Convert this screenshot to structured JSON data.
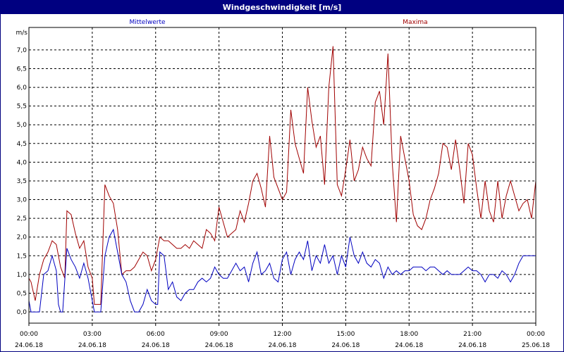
{
  "window": {
    "title": "Windgeschwindigkeit [m/s]"
  },
  "colors": {
    "series_mean": "#0000c0",
    "series_max": "#a00000",
    "title_bar": "#000080"
  },
  "chart_data": {
    "type": "line",
    "title": "Windgeschwindigkeit [m/s]",
    "ylabel": "m/s",
    "ylim": [
      -0.3,
      7.6
    ],
    "xlim": [
      "24.06.18 00:00",
      "25.06.18 00:00"
    ],
    "grid": true,
    "legend": "top",
    "y_ticks": [
      "0,0",
      "0,5",
      "1,0",
      "1,5",
      "2,0",
      "2,5",
      "3,0",
      "3,5",
      "4,0",
      "4,5",
      "5,0",
      "5,5",
      "6,0",
      "6,5",
      "7,0"
    ],
    "x_ticks": [
      {
        "time": "00:00",
        "date": "24.06.18"
      },
      {
        "time": "03:00",
        "date": "24.06.18"
      },
      {
        "time": "06:00",
        "date": "24.06.18"
      },
      {
        "time": "09:00",
        "date": "24.06.18"
      },
      {
        "time": "12:00",
        "date": "24.06.18"
      },
      {
        "time": "15:00",
        "date": "24.06.18"
      },
      {
        "time": "18:00",
        "date": "24.06.18"
      },
      {
        "time": "21:00",
        "date": "24.06.18"
      },
      {
        "time": "00:00",
        "date": "25.06.18"
      }
    ],
    "series": [
      {
        "name": "Mittelwerte",
        "points": [
          [
            0,
            0.3
          ],
          [
            0.1,
            0
          ],
          [
            0.5,
            0
          ],
          [
            0.7,
            1
          ],
          [
            0.9,
            1.1
          ],
          [
            1.1,
            1.5
          ],
          [
            1.3,
            1.1
          ],
          [
            1.4,
            0.2
          ],
          [
            1.5,
            0
          ],
          [
            1.6,
            0
          ],
          [
            1.8,
            1.7
          ],
          [
            2.0,
            1.4
          ],
          [
            2.2,
            1.2
          ],
          [
            2.4,
            0.9
          ],
          [
            2.6,
            1.3
          ],
          [
            2.8,
            0.9
          ],
          [
            3.0,
            0.3
          ],
          [
            3.1,
            0
          ],
          [
            3.4,
            0
          ],
          [
            3.6,
            1.5
          ],
          [
            3.8,
            2.0
          ],
          [
            4.0,
            2.2
          ],
          [
            4.2,
            1.6
          ],
          [
            4.4,
            1.0
          ],
          [
            4.6,
            0.8
          ],
          [
            4.8,
            0.3
          ],
          [
            5.0,
            0
          ],
          [
            5.2,
            0
          ],
          [
            5.4,
            0.2
          ],
          [
            5.6,
            0.6
          ],
          [
            5.8,
            0.3
          ],
          [
            6.0,
            0.2
          ],
          [
            6.1,
            0.2
          ],
          [
            6.2,
            1.6
          ],
          [
            6.4,
            1.5
          ],
          [
            6.6,
            0.6
          ],
          [
            6.8,
            0.8
          ],
          [
            7.0,
            0.4
          ],
          [
            7.2,
            0.3
          ],
          [
            7.4,
            0.5
          ],
          [
            7.6,
            0.6
          ],
          [
            7.8,
            0.6
          ],
          [
            8.0,
            0.8
          ],
          [
            8.2,
            0.9
          ],
          [
            8.4,
            0.8
          ],
          [
            8.6,
            0.9
          ],
          [
            8.8,
            1.2
          ],
          [
            9.0,
            1.0
          ],
          [
            9.2,
            0.9
          ],
          [
            9.4,
            0.9
          ],
          [
            9.6,
            1.1
          ],
          [
            9.8,
            1.3
          ],
          [
            10.0,
            1.1
          ],
          [
            10.2,
            1.2
          ],
          [
            10.4,
            0.8
          ],
          [
            10.6,
            1.3
          ],
          [
            10.8,
            1.6
          ],
          [
            11.0,
            1.0
          ],
          [
            11.2,
            1.1
          ],
          [
            11.4,
            1.3
          ],
          [
            11.6,
            0.9
          ],
          [
            11.8,
            0.8
          ],
          [
            12.0,
            1.4
          ],
          [
            12.2,
            1.6
          ],
          [
            12.4,
            1.0
          ],
          [
            12.6,
            1.4
          ],
          [
            12.8,
            1.6
          ],
          [
            13.0,
            1.4
          ],
          [
            13.2,
            1.9
          ],
          [
            13.4,
            1.1
          ],
          [
            13.6,
            1.5
          ],
          [
            13.8,
            1.3
          ],
          [
            14.0,
            1.8
          ],
          [
            14.2,
            1.3
          ],
          [
            14.4,
            1.5
          ],
          [
            14.6,
            1.0
          ],
          [
            14.8,
            1.5
          ],
          [
            15.0,
            1.2
          ],
          [
            15.2,
            2.0
          ],
          [
            15.4,
            1.5
          ],
          [
            15.6,
            1.3
          ],
          [
            15.8,
            1.6
          ],
          [
            16.0,
            1.3
          ],
          [
            16.2,
            1.2
          ],
          [
            16.4,
            1.4
          ],
          [
            16.6,
            1.3
          ],
          [
            16.8,
            0.9
          ],
          [
            17.0,
            1.2
          ],
          [
            17.2,
            1.0
          ],
          [
            17.4,
            1.1
          ],
          [
            17.6,
            1.0
          ],
          [
            17.8,
            1.1
          ],
          [
            18.0,
            1.1
          ],
          [
            18.2,
            1.2
          ],
          [
            18.4,
            1.2
          ],
          [
            18.6,
            1.2
          ],
          [
            18.8,
            1.1
          ],
          [
            19.0,
            1.2
          ],
          [
            19.2,
            1.2
          ],
          [
            19.4,
            1.1
          ],
          [
            19.6,
            1.0
          ],
          [
            19.8,
            1.1
          ],
          [
            20.0,
            1.0
          ],
          [
            20.2,
            1.0
          ],
          [
            20.4,
            1.0
          ],
          [
            20.6,
            1.1
          ],
          [
            20.8,
            1.2
          ],
          [
            21.0,
            1.1
          ],
          [
            21.2,
            1.1
          ],
          [
            21.4,
            1.0
          ],
          [
            21.6,
            0.8
          ],
          [
            21.8,
            1.0
          ],
          [
            22.0,
            1.0
          ],
          [
            22.2,
            0.9
          ],
          [
            22.4,
            1.1
          ],
          [
            22.6,
            1.0
          ],
          [
            22.8,
            0.8
          ],
          [
            23.0,
            1.0
          ],
          [
            23.2,
            1.3
          ],
          [
            23.4,
            1.5
          ],
          [
            23.6,
            1.5
          ],
          [
            24.0,
            1.5
          ]
        ]
      },
      {
        "name": "Maxima",
        "points": [
          [
            0,
            0.9
          ],
          [
            0.1,
            0.8
          ],
          [
            0.3,
            0.3
          ],
          [
            0.5,
            1.0
          ],
          [
            0.7,
            1.4
          ],
          [
            0.9,
            1.6
          ],
          [
            1.1,
            1.9
          ],
          [
            1.3,
            1.8
          ],
          [
            1.5,
            1.2
          ],
          [
            1.7,
            0.9
          ],
          [
            1.8,
            2.7
          ],
          [
            2.0,
            2.6
          ],
          [
            2.2,
            2.1
          ],
          [
            2.4,
            1.7
          ],
          [
            2.6,
            1.9
          ],
          [
            2.8,
            1.2
          ],
          [
            3.0,
            0.9
          ],
          [
            3.1,
            0.2
          ],
          [
            3.4,
            0.2
          ],
          [
            3.6,
            3.4
          ],
          [
            3.8,
            3.1
          ],
          [
            4.0,
            2.9
          ],
          [
            4.2,
            2.2
          ],
          [
            4.4,
            1.0
          ],
          [
            4.6,
            1.1
          ],
          [
            4.8,
            1.1
          ],
          [
            5.0,
            1.2
          ],
          [
            5.2,
            1.4
          ],
          [
            5.4,
            1.6
          ],
          [
            5.6,
            1.5
          ],
          [
            5.8,
            1.1
          ],
          [
            6.0,
            1.4
          ],
          [
            6.2,
            2.0
          ],
          [
            6.4,
            1.9
          ],
          [
            6.6,
            1.9
          ],
          [
            6.8,
            1.8
          ],
          [
            7.0,
            1.7
          ],
          [
            7.2,
            1.7
          ],
          [
            7.4,
            1.8
          ],
          [
            7.6,
            1.7
          ],
          [
            7.8,
            1.9
          ],
          [
            8.0,
            1.8
          ],
          [
            8.2,
            1.7
          ],
          [
            8.4,
            2.2
          ],
          [
            8.6,
            2.1
          ],
          [
            8.8,
            1.9
          ],
          [
            9.0,
            2.8
          ],
          [
            9.2,
            2.4
          ],
          [
            9.4,
            2.0
          ],
          [
            9.6,
            2.1
          ],
          [
            9.8,
            2.2
          ],
          [
            10.0,
            2.7
          ],
          [
            10.2,
            2.4
          ],
          [
            10.4,
            2.9
          ],
          [
            10.6,
            3.5
          ],
          [
            10.8,
            3.7
          ],
          [
            11.0,
            3.3
          ],
          [
            11.2,
            2.8
          ],
          [
            11.4,
            4.7
          ],
          [
            11.6,
            3.6
          ],
          [
            11.8,
            3.3
          ],
          [
            12.0,
            3.0
          ],
          [
            12.2,
            3.2
          ],
          [
            12.4,
            5.4
          ],
          [
            12.6,
            4.5
          ],
          [
            12.8,
            4.1
          ],
          [
            13.0,
            3.7
          ],
          [
            13.2,
            6.0
          ],
          [
            13.4,
            5.1
          ],
          [
            13.6,
            4.4
          ],
          [
            13.8,
            4.7
          ],
          [
            14.0,
            3.4
          ],
          [
            14.2,
            6.0
          ],
          [
            14.4,
            7.1
          ],
          [
            14.6,
            3.4
          ],
          [
            14.8,
            3.1
          ],
          [
            15.0,
            3.8
          ],
          [
            15.2,
            4.6
          ],
          [
            15.4,
            3.5
          ],
          [
            15.6,
            3.8
          ],
          [
            15.8,
            4.4
          ],
          [
            16.0,
            4.1
          ],
          [
            16.2,
            3.9
          ],
          [
            16.4,
            5.6
          ],
          [
            16.6,
            5.9
          ],
          [
            16.8,
            5.0
          ],
          [
            17.0,
            6.9
          ],
          [
            17.2,
            4.0
          ],
          [
            17.4,
            2.4
          ],
          [
            17.6,
            4.7
          ],
          [
            17.8,
            4.1
          ],
          [
            18.0,
            3.5
          ],
          [
            18.2,
            2.6
          ],
          [
            18.4,
            2.3
          ],
          [
            18.6,
            2.2
          ],
          [
            18.8,
            2.5
          ],
          [
            19.0,
            3.0
          ],
          [
            19.2,
            3.3
          ],
          [
            19.4,
            3.7
          ],
          [
            19.6,
            4.5
          ],
          [
            19.8,
            4.4
          ],
          [
            20.0,
            3.8
          ],
          [
            20.2,
            4.6
          ],
          [
            20.4,
            3.8
          ],
          [
            20.6,
            2.9
          ],
          [
            20.8,
            4.5
          ],
          [
            21.0,
            4.2
          ],
          [
            21.2,
            3.3
          ],
          [
            21.4,
            2.5
          ],
          [
            21.6,
            3.5
          ],
          [
            21.8,
            2.7
          ],
          [
            22.0,
            2.4
          ],
          [
            22.2,
            3.5
          ],
          [
            22.4,
            2.5
          ],
          [
            22.6,
            3.1
          ],
          [
            22.8,
            3.5
          ],
          [
            23.0,
            3.1
          ],
          [
            23.2,
            2.7
          ],
          [
            23.4,
            2.9
          ],
          [
            23.6,
            3.0
          ],
          [
            23.8,
            2.5
          ],
          [
            24.0,
            3.5
          ]
        ]
      }
    ]
  }
}
